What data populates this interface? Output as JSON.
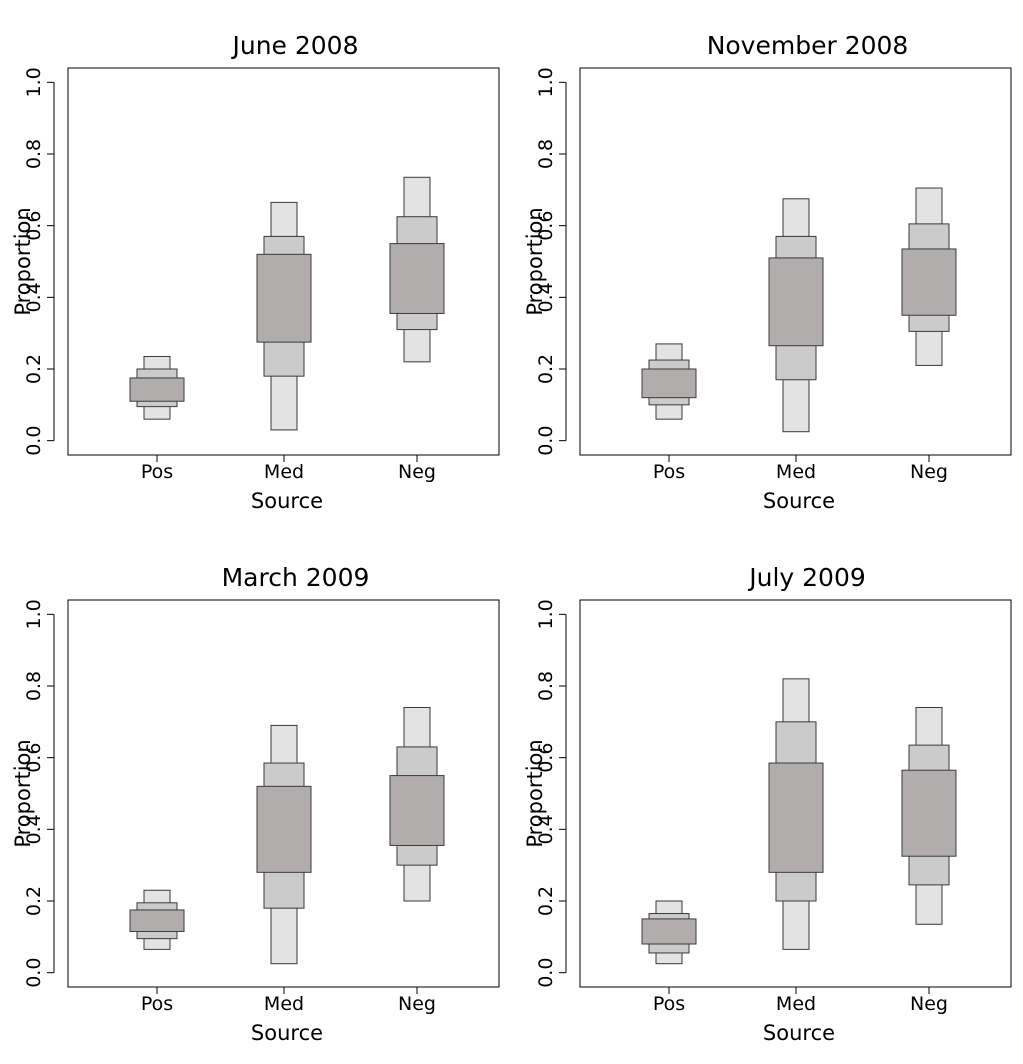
{
  "chart_data": [
    {
      "type": "box",
      "title": "June 2008",
      "xlabel": "Source",
      "ylabel": "Proportion",
      "categories": [
        "Pos",
        "Med",
        "Neg"
      ],
      "ylim": [
        -0.04,
        1.04
      ],
      "yticks": [
        "0.0",
        "0.2",
        "0.4",
        "0.6",
        "0.8",
        "1.0"
      ],
      "ytick_values": [
        0,
        0.2,
        0.4,
        0.6,
        0.8,
        1.0
      ],
      "bands": {
        "Pos": {
          "outer": [
            0.06,
            0.235
          ],
          "middle": [
            0.095,
            0.2
          ],
          "inner": [
            0.11,
            0.175
          ]
        },
        "Med": {
          "outer": [
            0.03,
            0.665
          ],
          "middle": [
            0.18,
            0.57
          ],
          "inner": [
            0.275,
            0.52
          ]
        },
        "Neg": {
          "outer": [
            0.22,
            0.735
          ],
          "middle": [
            0.31,
            0.625
          ],
          "inner": [
            0.355,
            0.55
          ]
        }
      }
    },
    {
      "type": "box",
      "title": "November 2008",
      "xlabel": "Source",
      "ylabel": "Proportion",
      "categories": [
        "Pos",
        "Med",
        "Neg"
      ],
      "ylim": [
        -0.04,
        1.04
      ],
      "yticks": [
        "0.0",
        "0.2",
        "0.4",
        "0.6",
        "0.8",
        "1.0"
      ],
      "ytick_values": [
        0,
        0.2,
        0.4,
        0.6,
        0.8,
        1.0
      ],
      "bands": {
        "Pos": {
          "outer": [
            0.06,
            0.27
          ],
          "middle": [
            0.1,
            0.225
          ],
          "inner": [
            0.12,
            0.2
          ]
        },
        "Med": {
          "outer": [
            0.025,
            0.675
          ],
          "middle": [
            0.17,
            0.57
          ],
          "inner": [
            0.265,
            0.51
          ]
        },
        "Neg": {
          "outer": [
            0.21,
            0.705
          ],
          "middle": [
            0.305,
            0.605
          ],
          "inner": [
            0.35,
            0.535
          ]
        }
      }
    },
    {
      "type": "box",
      "title": "March 2009",
      "xlabel": "Source",
      "ylabel": "Proportion",
      "categories": [
        "Pos",
        "Med",
        "Neg"
      ],
      "ylim": [
        -0.04,
        1.04
      ],
      "yticks": [
        "0.0",
        "0.2",
        "0.4",
        "0.6",
        "0.8",
        "1.0"
      ],
      "ytick_values": [
        0,
        0.2,
        0.4,
        0.6,
        0.8,
        1.0
      ],
      "bands": {
        "Pos": {
          "outer": [
            0.065,
            0.23
          ],
          "middle": [
            0.095,
            0.195
          ],
          "inner": [
            0.115,
            0.175
          ]
        },
        "Med": {
          "outer": [
            0.025,
            0.69
          ],
          "middle": [
            0.18,
            0.585
          ],
          "inner": [
            0.28,
            0.52
          ]
        },
        "Neg": {
          "outer": [
            0.2,
            0.74
          ],
          "middle": [
            0.3,
            0.63
          ],
          "inner": [
            0.355,
            0.55
          ]
        }
      }
    },
    {
      "type": "box",
      "title": "July 2009",
      "xlabel": "Source",
      "ylabel": "Proportion",
      "categories": [
        "Pos",
        "Med",
        "Neg"
      ],
      "ylim": [
        -0.04,
        1.04
      ],
      "yticks": [
        "0.0",
        "0.2",
        "0.4",
        "0.6",
        "0.8",
        "1.0"
      ],
      "ytick_values": [
        0,
        0.2,
        0.4,
        0.6,
        0.8,
        1.0
      ],
      "bands": {
        "Pos": {
          "outer": [
            0.025,
            0.2
          ],
          "middle": [
            0.055,
            0.165
          ],
          "inner": [
            0.08,
            0.15
          ]
        },
        "Med": {
          "outer": [
            0.065,
            0.82
          ],
          "middle": [
            0.2,
            0.7
          ],
          "inner": [
            0.28,
            0.585
          ]
        },
        "Neg": {
          "outer": [
            0.135,
            0.74
          ],
          "middle": [
            0.245,
            0.635
          ],
          "inner": [
            0.325,
            0.565
          ]
        }
      }
    }
  ],
  "colors": {
    "outer": "#e3e3e3",
    "middle": "#cbcbcb",
    "inner": "#b1adad",
    "stroke": "#3a3a3a"
  }
}
